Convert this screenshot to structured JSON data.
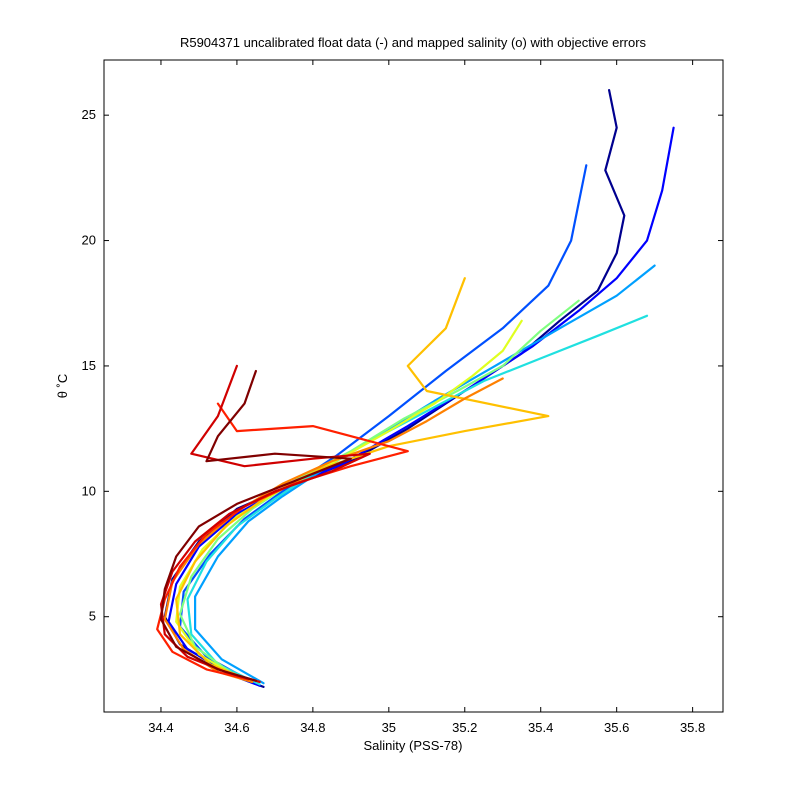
{
  "chart_data": {
    "type": "line",
    "title": "R5904371 uncalibrated float data (-) and mapped salinity (o) with objective errors",
    "xlabel": "Salinity (PSS-78)",
    "ylabel": "θ ˚C",
    "xlim": [
      34.25,
      35.88
    ],
    "ylim": [
      1.2,
      27.2
    ],
    "xticks": [
      34.4,
      34.6,
      34.8,
      35,
      35.2,
      35.4,
      35.6,
      35.8
    ],
    "xtick_labels": [
      "34.4",
      "34.6",
      "34.8",
      "35",
      "35.2",
      "35.4",
      "35.6",
      "35.8"
    ],
    "yticks": [
      5,
      10,
      15,
      20,
      25
    ],
    "ytick_labels": [
      "5",
      "10",
      "15",
      "20",
      "25"
    ],
    "grid": false,
    "colormap": "jet",
    "series": [
      {
        "color": "#00008f",
        "values": [
          [
            35.58,
            26.0
          ],
          [
            35.6,
            24.5
          ],
          [
            35.57,
            22.8
          ],
          [
            35.62,
            21.0
          ],
          [
            35.6,
            19.5
          ],
          [
            35.55,
            18.0
          ],
          [
            35.45,
            16.8
          ],
          [
            35.35,
            15.5
          ],
          [
            35.2,
            14.0
          ],
          [
            35.05,
            12.5
          ],
          [
            34.9,
            11.2
          ],
          [
            34.75,
            10.3
          ],
          [
            34.6,
            9.3
          ],
          [
            34.5,
            8.0
          ],
          [
            34.43,
            6.5
          ],
          [
            34.41,
            5.0
          ],
          [
            34.45,
            3.9
          ],
          [
            34.58,
            2.7
          ],
          [
            34.67,
            2.2
          ]
        ]
      },
      {
        "color": "#0000ff",
        "values": [
          [
            35.75,
            24.5
          ],
          [
            35.72,
            22.0
          ],
          [
            35.68,
            20.0
          ],
          [
            35.6,
            18.5
          ],
          [
            35.5,
            17.2
          ],
          [
            35.38,
            15.8
          ],
          [
            35.22,
            14.2
          ],
          [
            35.05,
            12.6
          ],
          [
            34.88,
            11.1
          ],
          [
            34.72,
            10.1
          ],
          [
            34.6,
            9.1
          ],
          [
            34.5,
            7.8
          ],
          [
            34.44,
            6.3
          ],
          [
            34.42,
            4.8
          ],
          [
            34.47,
            3.7
          ],
          [
            34.6,
            2.6
          ],
          [
            34.66,
            2.25
          ]
        ]
      },
      {
        "color": "#0050ff",
        "values": [
          [
            35.52,
            23.0
          ],
          [
            35.5,
            21.5
          ],
          [
            35.48,
            20.0
          ],
          [
            35.42,
            18.2
          ],
          [
            35.3,
            16.5
          ],
          [
            35.15,
            14.8
          ],
          [
            35.0,
            13.0
          ],
          [
            34.86,
            11.4
          ],
          [
            34.72,
            10.0
          ],
          [
            34.62,
            8.9
          ],
          [
            34.53,
            7.5
          ],
          [
            34.46,
            6.0
          ],
          [
            34.45,
            4.6
          ],
          [
            34.52,
            3.4
          ],
          [
            34.64,
            2.4
          ]
        ]
      },
      {
        "color": "#00a0ff",
        "values": [
          [
            35.7,
            19.0
          ],
          [
            35.6,
            17.8
          ],
          [
            35.45,
            16.5
          ],
          [
            35.28,
            15.0
          ],
          [
            35.12,
            13.6
          ],
          [
            34.97,
            12.2
          ],
          [
            34.84,
            11.0
          ],
          [
            34.72,
            9.8
          ],
          [
            34.63,
            8.8
          ],
          [
            34.55,
            7.4
          ],
          [
            34.49,
            5.8
          ],
          [
            34.49,
            4.5
          ],
          [
            34.56,
            3.3
          ],
          [
            34.67,
            2.35
          ]
        ]
      },
      {
        "color": "#20e0e0",
        "values": [
          [
            35.68,
            17.0
          ],
          [
            35.55,
            16.2
          ],
          [
            35.4,
            15.3
          ],
          [
            35.25,
            14.4
          ],
          [
            35.1,
            13.2
          ],
          [
            34.95,
            12.0
          ],
          [
            34.82,
            10.9
          ],
          [
            34.7,
            9.7
          ],
          [
            34.6,
            8.6
          ],
          [
            34.52,
            7.2
          ],
          [
            34.47,
            5.7
          ],
          [
            34.48,
            4.3
          ],
          [
            34.55,
            3.1
          ],
          [
            34.66,
            2.3
          ]
        ]
      },
      {
        "color": "#80ff80",
        "values": [
          [
            35.5,
            17.6
          ],
          [
            35.4,
            16.4
          ],
          [
            35.3,
            15.0
          ],
          [
            35.18,
            14.0
          ],
          [
            35.04,
            12.9
          ],
          [
            34.9,
            11.6
          ],
          [
            34.76,
            10.5
          ],
          [
            34.64,
            9.3
          ],
          [
            34.55,
            8.1
          ],
          [
            34.48,
            6.6
          ],
          [
            34.45,
            5.1
          ],
          [
            34.49,
            3.8
          ],
          [
            34.6,
            2.6
          ]
        ]
      },
      {
        "color": "#e0ff20",
        "values": [
          [
            35.35,
            16.8
          ],
          [
            35.3,
            15.6
          ],
          [
            35.22,
            14.6
          ],
          [
            35.12,
            13.5
          ],
          [
            35.0,
            12.4
          ],
          [
            34.86,
            11.2
          ],
          [
            34.72,
            10.1
          ],
          [
            34.6,
            9.0
          ],
          [
            34.51,
            7.7
          ],
          [
            34.45,
            6.2
          ],
          [
            34.44,
            4.8
          ],
          [
            34.5,
            3.5
          ],
          [
            34.6,
            2.6
          ]
        ]
      },
      {
        "color": "#ffc000",
        "values": [
          [
            35.2,
            18.5
          ],
          [
            35.15,
            16.5
          ],
          [
            35.05,
            15.0
          ],
          [
            35.1,
            14.0
          ],
          [
            35.42,
            13.0
          ],
          [
            35.2,
            12.4
          ],
          [
            35.0,
            11.8
          ],
          [
            34.82,
            10.9
          ],
          [
            34.68,
            9.8
          ],
          [
            34.57,
            8.6
          ],
          [
            34.49,
            7.2
          ],
          [
            34.44,
            5.7
          ],
          [
            34.45,
            4.3
          ],
          [
            34.53,
            3.1
          ],
          [
            34.63,
            2.5
          ]
        ]
      },
      {
        "color": "#ff8000",
        "values": [
          [
            35.3,
            14.5
          ],
          [
            35.2,
            13.7
          ],
          [
            35.1,
            12.8
          ],
          [
            35.0,
            12.0
          ],
          [
            34.85,
            11.2
          ],
          [
            34.72,
            10.3
          ],
          [
            34.6,
            9.2
          ],
          [
            34.5,
            7.9
          ],
          [
            34.43,
            6.4
          ],
          [
            34.41,
            4.9
          ],
          [
            34.46,
            3.7
          ],
          [
            34.55,
            2.8
          ],
          [
            34.64,
            2.4
          ]
        ]
      },
      {
        "color": "#ff2000",
        "values": [
          [
            34.55,
            13.5
          ],
          [
            34.6,
            12.4
          ],
          [
            34.8,
            12.6
          ],
          [
            34.95,
            12.0
          ],
          [
            35.05,
            11.6
          ],
          [
            34.9,
            11.0
          ],
          [
            34.75,
            10.3
          ],
          [
            34.62,
            9.4
          ],
          [
            34.52,
            8.3
          ],
          [
            34.45,
            7.0
          ],
          [
            34.41,
            5.7
          ],
          [
            34.39,
            4.5
          ],
          [
            34.43,
            3.6
          ],
          [
            34.52,
            2.9
          ],
          [
            34.63,
            2.5
          ]
        ]
      },
      {
        "color": "#d00000",
        "values": [
          [
            34.6,
            15.0
          ],
          [
            34.55,
            13.0
          ],
          [
            34.48,
            11.5
          ],
          [
            34.62,
            11.0
          ],
          [
            34.8,
            11.3
          ],
          [
            34.95,
            11.5
          ],
          [
            34.85,
            10.8
          ],
          [
            34.7,
            10.0
          ],
          [
            34.58,
            9.1
          ],
          [
            34.49,
            8.0
          ],
          [
            34.43,
            6.8
          ],
          [
            34.4,
            5.5
          ],
          [
            34.41,
            4.3
          ],
          [
            34.47,
            3.4
          ],
          [
            34.57,
            2.8
          ],
          [
            34.66,
            2.4
          ]
        ]
      },
      {
        "color": "#800000",
        "values": [
          [
            34.65,
            14.8
          ],
          [
            34.62,
            13.5
          ],
          [
            34.55,
            12.2
          ],
          [
            34.52,
            11.2
          ],
          [
            34.7,
            11.5
          ],
          [
            34.9,
            11.3
          ],
          [
            34.75,
            10.4
          ],
          [
            34.6,
            9.5
          ],
          [
            34.5,
            8.6
          ],
          [
            34.44,
            7.4
          ],
          [
            34.41,
            6.1
          ],
          [
            34.4,
            4.9
          ],
          [
            34.44,
            3.8
          ],
          [
            34.55,
            2.9
          ],
          [
            34.65,
            2.45
          ]
        ]
      }
    ]
  }
}
